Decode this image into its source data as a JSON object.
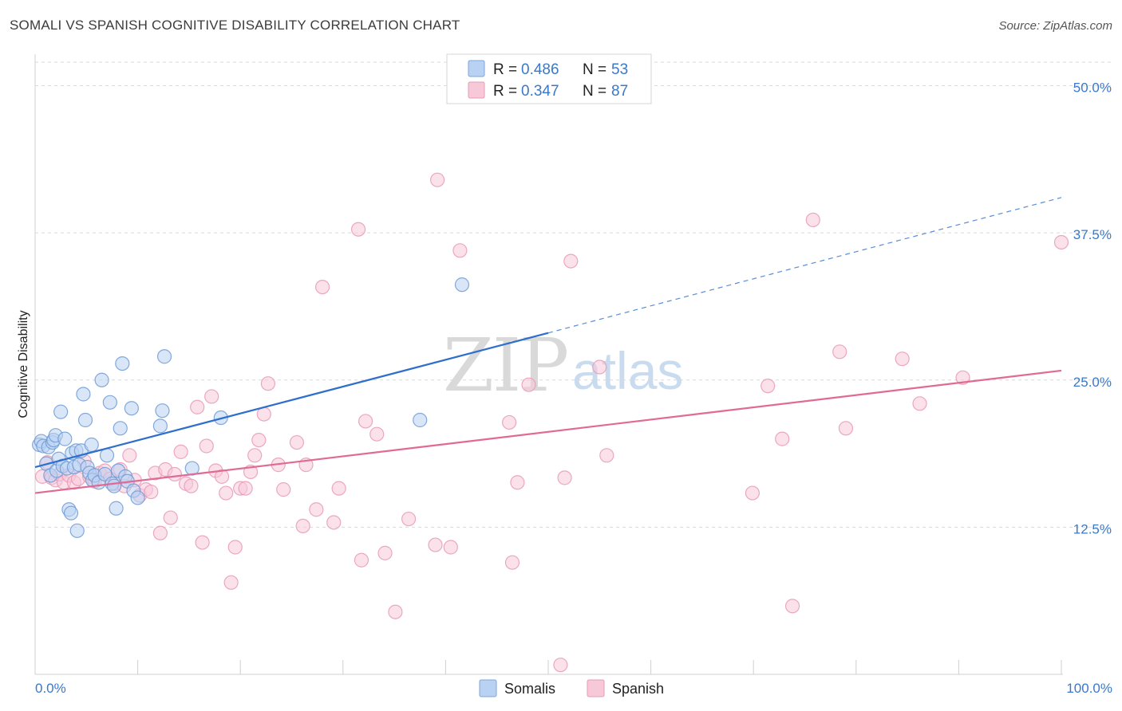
{
  "header": {
    "title": "SOMALI VS SPANISH COGNITIVE DISABILITY CORRELATION CHART",
    "source": "Source: ZipAtlas.com"
  },
  "watermark": {
    "zip": "ZIP",
    "atlas": "atlas"
  },
  "colors": {
    "blue": "#3a78c9",
    "blue_fill": "#b9d2f3",
    "blue_line": "#2f6fcc",
    "pink": "#e0729a",
    "pink_fill": "#f7c9d8",
    "pink_line": "#e06a94",
    "grid": "#d9d9d9"
  },
  "legend": {
    "items": [
      {
        "r_label": "R = ",
        "r_value": "0.486",
        "n_label": "N = ",
        "n_value": "53",
        "series": "blue"
      },
      {
        "r_label": "R = ",
        "r_value": "0.347",
        "n_label": "N = ",
        "n_value": "87",
        "series": "pink"
      }
    ]
  },
  "bottom_legend": [
    "Somalis",
    "Spanish"
  ],
  "chart_data": {
    "type": "scatter",
    "title": "SOMALI VS SPANISH COGNITIVE DISABILITY CORRELATION CHART",
    "xlabel": "",
    "ylabel": "Cognitive Disability",
    "xlim": [
      0,
      100
    ],
    "ylim": [
      0,
      52
    ],
    "x_tick_labels": [
      "0.0%",
      "100.0%"
    ],
    "y_ticks": [
      12.5,
      25.0,
      37.5,
      50.0
    ],
    "y_tick_labels": [
      "12.5%",
      "25.0%",
      "37.5%",
      "50.0%"
    ],
    "grid": true,
    "legend_position": "top-center",
    "series": [
      {
        "name": "Somalis",
        "color": "blue",
        "r": 0.486,
        "n": 53,
        "trend": {
          "x0": 0,
          "y0": 17.6,
          "x1": 50,
          "y1": 29.0,
          "x_dash_end": 100,
          "y_dash_end": 40.5
        },
        "points": [
          [
            0.4,
            19.5
          ],
          [
            0.6,
            19.8
          ],
          [
            0.8,
            19.4
          ],
          [
            1.1,
            17.9
          ],
          [
            1.3,
            19.3
          ],
          [
            1.5,
            16.9
          ],
          [
            1.7,
            19.7
          ],
          [
            1.8,
            19.9
          ],
          [
            2.0,
            20.3
          ],
          [
            2.1,
            17.3
          ],
          [
            2.3,
            18.3
          ],
          [
            2.5,
            22.3
          ],
          [
            2.7,
            17.7
          ],
          [
            2.9,
            20.0
          ],
          [
            3.1,
            17.5
          ],
          [
            3.3,
            14.0
          ],
          [
            3.5,
            13.7
          ],
          [
            3.6,
            18.8
          ],
          [
            3.8,
            17.6
          ],
          [
            4.0,
            19.0
          ],
          [
            4.1,
            12.2
          ],
          [
            4.3,
            17.8
          ],
          [
            4.5,
            19.0
          ],
          [
            4.7,
            23.8
          ],
          [
            4.9,
            21.6
          ],
          [
            5.1,
            17.6
          ],
          [
            5.3,
            17.1
          ],
          [
            5.5,
            19.5
          ],
          [
            5.6,
            16.5
          ],
          [
            5.8,
            16.9
          ],
          [
            6.2,
            16.3
          ],
          [
            6.5,
            25.0
          ],
          [
            6.8,
            17.0
          ],
          [
            7.0,
            18.6
          ],
          [
            7.3,
            23.1
          ],
          [
            7.5,
            16.2
          ],
          [
            7.7,
            16.0
          ],
          [
            7.9,
            14.1
          ],
          [
            8.1,
            17.3
          ],
          [
            8.3,
            20.9
          ],
          [
            8.5,
            26.4
          ],
          [
            8.8,
            16.8
          ],
          [
            9.0,
            16.4
          ],
          [
            9.4,
            22.6
          ],
          [
            9.6,
            15.6
          ],
          [
            10.0,
            15.0
          ],
          [
            12.2,
            21.1
          ],
          [
            12.4,
            22.4
          ],
          [
            12.6,
            27.0
          ],
          [
            15.3,
            17.5
          ],
          [
            18.1,
            21.8
          ],
          [
            37.5,
            21.6
          ],
          [
            41.6,
            33.1
          ]
        ]
      },
      {
        "name": "Spanish",
        "color": "pink",
        "r": 0.347,
        "n": 87,
        "trend": {
          "x0": 0,
          "y0": 15.4,
          "x1": 100,
          "y1": 25.8
        },
        "points": [
          [
            0.7,
            16.8
          ],
          [
            1.2,
            18.0
          ],
          [
            1.6,
            16.7
          ],
          [
            2.0,
            16.5
          ],
          [
            2.4,
            17.0
          ],
          [
            2.8,
            16.3
          ],
          [
            3.3,
            16.9
          ],
          [
            3.8,
            16.3
          ],
          [
            4.2,
            16.6
          ],
          [
            4.8,
            18.1
          ],
          [
            5.3,
            16.8
          ],
          [
            5.8,
            16.4
          ],
          [
            6.3,
            17.1
          ],
          [
            6.8,
            17.3
          ],
          [
            7.3,
            16.6
          ],
          [
            7.8,
            16.2
          ],
          [
            8.3,
            17.4
          ],
          [
            8.7,
            16.0
          ],
          [
            9.2,
            18.6
          ],
          [
            9.7,
            16.5
          ],
          [
            10.2,
            15.2
          ],
          [
            10.8,
            15.7
          ],
          [
            11.3,
            15.5
          ],
          [
            11.7,
            17.1
          ],
          [
            12.2,
            12.0
          ],
          [
            12.7,
            17.4
          ],
          [
            13.2,
            13.3
          ],
          [
            13.6,
            17.0
          ],
          [
            14.2,
            18.9
          ],
          [
            14.7,
            16.2
          ],
          [
            15.2,
            16.0
          ],
          [
            15.8,
            22.7
          ],
          [
            16.3,
            11.2
          ],
          [
            16.7,
            19.4
          ],
          [
            17.2,
            23.6
          ],
          [
            17.6,
            17.3
          ],
          [
            18.2,
            16.8
          ],
          [
            18.6,
            15.4
          ],
          [
            19.1,
            7.8
          ],
          [
            19.5,
            10.8
          ],
          [
            20.0,
            15.8
          ],
          [
            20.5,
            15.8
          ],
          [
            21.0,
            17.2
          ],
          [
            21.4,
            18.6
          ],
          [
            21.8,
            19.9
          ],
          [
            22.3,
            22.1
          ],
          [
            22.7,
            24.7
          ],
          [
            23.7,
            17.8
          ],
          [
            24.2,
            15.7
          ],
          [
            25.5,
            19.7
          ],
          [
            26.1,
            12.6
          ],
          [
            26.4,
            17.8
          ],
          [
            27.4,
            14.0
          ],
          [
            28.0,
            32.9
          ],
          [
            29.1,
            12.9
          ],
          [
            29.6,
            15.8
          ],
          [
            31.5,
            37.8
          ],
          [
            31.8,
            9.7
          ],
          [
            32.2,
            21.5
          ],
          [
            33.3,
            20.4
          ],
          [
            34.1,
            10.3
          ],
          [
            35.1,
            5.3
          ],
          [
            36.4,
            13.2
          ],
          [
            39.0,
            11.0
          ],
          [
            39.2,
            42.0
          ],
          [
            40.5,
            10.8
          ],
          [
            41.4,
            36.0
          ],
          [
            46.2,
            21.4
          ],
          [
            46.5,
            9.5
          ],
          [
            47.0,
            16.3
          ],
          [
            48.1,
            24.6
          ],
          [
            51.2,
            0.8
          ],
          [
            51.6,
            16.7
          ],
          [
            52.2,
            35.1
          ],
          [
            55.0,
            26.1
          ],
          [
            55.7,
            18.6
          ],
          [
            69.9,
            15.4
          ],
          [
            71.4,
            24.5
          ],
          [
            72.8,
            20.0
          ],
          [
            73.8,
            5.8
          ],
          [
            75.8,
            38.6
          ],
          [
            78.4,
            27.4
          ],
          [
            79.0,
            20.9
          ],
          [
            84.5,
            26.8
          ],
          [
            86.2,
            23.0
          ],
          [
            90.4,
            25.2
          ],
          [
            100.0,
            36.7
          ]
        ]
      }
    ]
  }
}
